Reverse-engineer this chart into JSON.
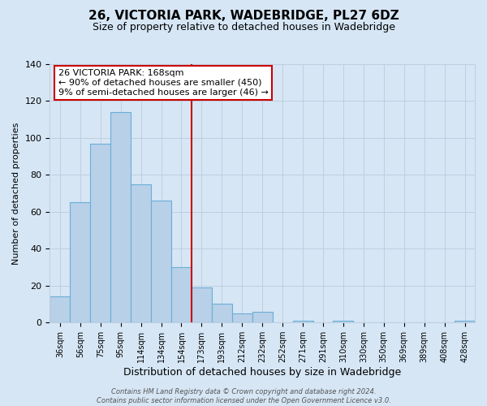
{
  "title": "26, VICTORIA PARK, WADEBRIDGE, PL27 6DZ",
  "subtitle": "Size of property relative to detached houses in Wadebridge",
  "xlabel": "Distribution of detached houses by size in Wadebridge",
  "ylabel": "Number of detached properties",
  "bar_labels": [
    "36sqm",
    "56sqm",
    "75sqm",
    "95sqm",
    "114sqm",
    "134sqm",
    "154sqm",
    "173sqm",
    "193sqm",
    "212sqm",
    "232sqm",
    "252sqm",
    "271sqm",
    "291sqm",
    "310sqm",
    "330sqm",
    "350sqm",
    "369sqm",
    "389sqm",
    "408sqm",
    "428sqm"
  ],
  "bar_values": [
    14,
    65,
    97,
    114,
    75,
    66,
    30,
    19,
    10,
    5,
    6,
    0,
    1,
    0,
    1,
    0,
    0,
    0,
    0,
    0,
    1
  ],
  "bar_color": "#b8d0e8",
  "bar_edgecolor": "#6aaed6",
  "background_color": "#d6e6f5",
  "grid_color": "#c0cfe0",
  "vline_color": "#cc0000",
  "annotation_title": "26 VICTORIA PARK: 168sqm",
  "annotation_line1": "← 90% of detached houses are smaller (450)",
  "annotation_line2": "9% of semi-detached houses are larger (46) →",
  "annotation_box_facecolor": "#ffffff",
  "annotation_box_edgecolor": "#cc0000",
  "footer1": "Contains HM Land Registry data © Crown copyright and database right 2024.",
  "footer2": "Contains public sector information licensed under the Open Government Licence v3.0.",
  "ylim": [
    0,
    140
  ],
  "yticks": [
    0,
    20,
    40,
    60,
    80,
    100,
    120,
    140
  ],
  "title_fontsize": 11,
  "subtitle_fontsize": 9,
  "xlabel_fontsize": 9,
  "ylabel_fontsize": 8,
  "tick_fontsize": 8,
  "xtick_fontsize": 7,
  "annotation_fontsize": 8,
  "footer_fontsize": 6
}
